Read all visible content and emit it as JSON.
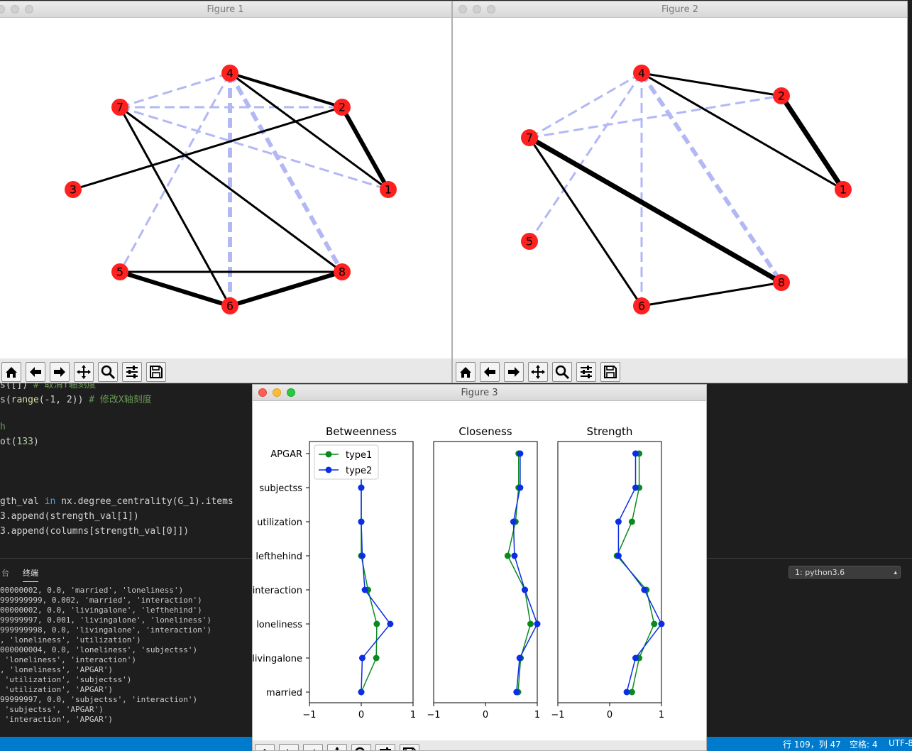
{
  "editor": {
    "lines": [
      {
        "parts": [
          {
            "t": "s([]) ",
            "c": ""
          },
          {
            "t": "# 取消Y轴刻度",
            "c": "c-green"
          }
        ]
      },
      {
        "parts": [
          {
            "t": "s(",
            "c": ""
          },
          {
            "t": "range",
            "c": "c-yellow"
          },
          {
            "t": "(-1, 2)) ",
            "c": ""
          },
          {
            "t": "# 修改X轴刻度",
            "c": "c-green"
          }
        ]
      },
      {
        "parts": [
          {
            "t": "",
            "c": ""
          }
        ]
      },
      {
        "parts": [
          {
            "t": "h",
            "c": "c-green"
          }
        ]
      },
      {
        "parts": [
          {
            "t": "ot(",
            "c": ""
          },
          {
            "t": "133",
            "c": "c-num"
          },
          {
            "t": ")",
            "c": ""
          }
        ]
      },
      {
        "parts": [
          {
            "t": "",
            "c": ""
          }
        ]
      },
      {
        "parts": [
          {
            "t": "",
            "c": ""
          }
        ]
      },
      {
        "parts": [
          {
            "t": "",
            "c": ""
          }
        ]
      },
      {
        "parts": [
          {
            "t": "gth_val ",
            "c": ""
          },
          {
            "t": "in",
            "c": "c-blue"
          },
          {
            "t": " nx.degree_centrality(G_1).items",
            "c": ""
          }
        ]
      },
      {
        "parts": [
          {
            "t": "3.append(strength_val[1])",
            "c": ""
          }
        ]
      },
      {
        "parts": [
          {
            "t": "3.append(columns[strength_val[0]])",
            "c": ""
          }
        ]
      }
    ]
  },
  "panel": {
    "tab_console": "台",
    "tab_terminal": "终端",
    "terminal_select": "1: python3.6",
    "lines": [
      "00000002, 0.0, 'married', 'loneliness')",
      "999999999, 0.002, 'married', 'interaction')",
      "00000002, 0.0, 'livingalone', 'lefthehind')",
      "99999997, 0.001, 'livingalone', 'loneliness')",
      "999999998, 0.0, 'livingalone', 'interaction')",
      ", 'loneliness', 'utilization')",
      "000000004, 0.0, 'loneliness', 'subjectss')",
      " 'loneliness', 'interaction')",
      ", 'loneliness', 'APGAR')",
      " 'utilization', 'subjectss')",
      " 'utilization', 'APGAR')",
      "99999997, 0.0, 'subjectss', 'interaction')",
      " 'subjectss', 'APGAR')",
      " 'interaction', 'APGAR')"
    ]
  },
  "status": {
    "position": "行 109，列 47",
    "spaces": "空格: 4",
    "encoding": "UTF-8"
  },
  "figure1": {
    "title": "Figure 1",
    "nodes": [
      {
        "id": "1",
        "pos": [
          546,
          266
        ]
      },
      {
        "id": "2",
        "pos": [
          481,
          150
        ]
      },
      {
        "id": "3",
        "pos": [
          102,
          266
        ]
      },
      {
        "id": "4",
        "pos": [
          323,
          102
        ]
      },
      {
        "id": "5",
        "pos": [
          168,
          382
        ]
      },
      {
        "id": "6",
        "pos": [
          323,
          430
        ]
      },
      {
        "id": "7",
        "pos": [
          168,
          150
        ]
      },
      {
        "id": "8",
        "pos": [
          481,
          382
        ]
      }
    ],
    "edges": [
      {
        "a": "4",
        "b": "2",
        "w": 4,
        "style": "solid"
      },
      {
        "a": "4",
        "b": "1",
        "w": 3,
        "style": "solid"
      },
      {
        "a": "2",
        "b": "1",
        "w": 6,
        "style": "solid"
      },
      {
        "a": "3",
        "b": "2",
        "w": 3,
        "style": "solid"
      },
      {
        "a": "7",
        "b": "6",
        "w": 3,
        "style": "solid"
      },
      {
        "a": "7",
        "b": "8",
        "w": 3,
        "style": "solid"
      },
      {
        "a": "5",
        "b": "8",
        "w": 3,
        "style": "solid"
      },
      {
        "a": "5",
        "b": "6",
        "w": 6,
        "style": "solid"
      },
      {
        "a": "6",
        "b": "8",
        "w": 6,
        "style": "solid"
      },
      {
        "a": "7",
        "b": "4",
        "w": 3,
        "style": "dashed"
      },
      {
        "a": "7",
        "b": "2",
        "w": 3,
        "style": "dashed"
      },
      {
        "a": "7",
        "b": "1",
        "w": 3,
        "style": "dashed"
      },
      {
        "a": "4",
        "b": "5",
        "w": 3,
        "style": "dashed"
      },
      {
        "a": "4",
        "b": "6",
        "w": 6,
        "style": "dashed"
      },
      {
        "a": "4",
        "b": "8",
        "w": 6,
        "style": "dashed"
      }
    ]
  },
  "figure2": {
    "title": "Figure 2",
    "nodes": [
      {
        "id": "1",
        "pos": [
          1187,
          266
        ]
      },
      {
        "id": "2",
        "pos": [
          1100,
          134
        ]
      },
      {
        "id": "4",
        "pos": [
          903,
          102
        ]
      },
      {
        "id": "5",
        "pos": [
          745,
          339
        ]
      },
      {
        "id": "6",
        "pos": [
          903,
          430
        ]
      },
      {
        "id": "7",
        "pos": [
          745,
          193
        ]
      },
      {
        "id": "8",
        "pos": [
          1100,
          397
        ]
      }
    ],
    "edges": [
      {
        "a": "4",
        "b": "2",
        "w": 3,
        "style": "solid"
      },
      {
        "a": "4",
        "b": "1",
        "w": 3,
        "style": "solid"
      },
      {
        "a": "2",
        "b": "1",
        "w": 7,
        "style": "solid"
      },
      {
        "a": "7",
        "b": "8",
        "w": 7,
        "style": "solid"
      },
      {
        "a": "7",
        "b": "6",
        "w": 3,
        "style": "solid"
      },
      {
        "a": "6",
        "b": "8",
        "w": 3,
        "style": "solid"
      },
      {
        "a": "7",
        "b": "4",
        "w": 3,
        "style": "dashed"
      },
      {
        "a": "7",
        "b": "2",
        "w": 3,
        "style": "dashed"
      },
      {
        "a": "4",
        "b": "5",
        "w": 3,
        "style": "dashed"
      },
      {
        "a": "4",
        "b": "6",
        "w": 3,
        "style": "dashed"
      },
      {
        "a": "4",
        "b": "8",
        "w": 6,
        "style": "dashed"
      }
    ]
  },
  "figure3": {
    "title": "Figure 3"
  },
  "colors": {
    "node": "#ff2020",
    "solid_edge": "#000000",
    "dashed_edge": "#b3b8f5",
    "type1": "#0a8a1e",
    "type2": "#0a2ee6"
  },
  "toolbar_icons": [
    "home-icon",
    "back-arrow-icon",
    "forward-arrow-icon",
    "pan-icon",
    "zoom-icon",
    "configure-icon",
    "save-icon"
  ],
  "chart_data": {
    "type": "line",
    "orientation": "horizontal",
    "categories": [
      "APGAR",
      "subjectss",
      "utilization",
      "lefthehind",
      "interaction",
      "loneliness",
      "livingalone",
      "married"
    ],
    "xlim": [
      -1,
      1
    ],
    "xticks": [
      "−1",
      "0",
      "1"
    ],
    "legend": {
      "location": "upper-left",
      "entries": [
        "type1",
        "type2"
      ]
    },
    "panels": [
      {
        "title": "Betweenness",
        "series": [
          {
            "name": "type1",
            "values": [
              0.0,
              0.0,
              0.0,
              0.0,
              0.13,
              0.3,
              0.29,
              0.0
            ]
          },
          {
            "name": "type2",
            "values": [
              0.0,
              0.0,
              0.0,
              0.02,
              0.07,
              0.56,
              0.02,
              0.0
            ]
          }
        ]
      },
      {
        "title": "Closeness",
        "series": [
          {
            "name": "type1",
            "values": [
              0.64,
              0.64,
              0.58,
              0.43,
              0.76,
              0.87,
              0.68,
              0.63
            ]
          },
          {
            "name": "type2",
            "values": [
              0.67,
              0.67,
              0.54,
              0.56,
              0.76,
              1.0,
              0.66,
              0.6
            ]
          }
        ]
      },
      {
        "title": "Strength",
        "series": [
          {
            "name": "type1",
            "values": [
              0.57,
              0.57,
              0.43,
              0.14,
              0.71,
              0.86,
              0.57,
              0.43
            ]
          },
          {
            "name": "type2",
            "values": [
              0.5,
              0.5,
              0.17,
              0.17,
              0.67,
              1.0,
              0.5,
              0.33
            ]
          }
        ]
      }
    ]
  }
}
